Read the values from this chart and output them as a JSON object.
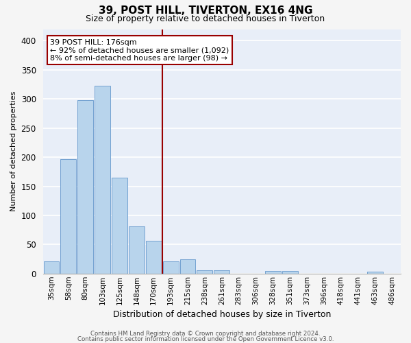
{
  "title": "39, POST HILL, TIVERTON, EX16 4NG",
  "subtitle": "Size of property relative to detached houses in Tiverton",
  "xlabel": "Distribution of detached houses by size in Tiverton",
  "ylabel": "Number of detached properties",
  "bar_labels": [
    "35sqm",
    "58sqm",
    "80sqm",
    "103sqm",
    "125sqm",
    "148sqm",
    "170sqm",
    "193sqm",
    "215sqm",
    "238sqm",
    "261sqm",
    "283sqm",
    "306sqm",
    "328sqm",
    "351sqm",
    "373sqm",
    "396sqm",
    "418sqm",
    "441sqm",
    "463sqm",
    "486sqm"
  ],
  "bar_values": [
    21,
    197,
    298,
    323,
    165,
    81,
    56,
    21,
    24,
    6,
    6,
    0,
    0,
    4,
    4,
    0,
    0,
    0,
    0,
    3,
    0
  ],
  "bar_color": "#b8d4ec",
  "bar_edge_color": "#6699cc",
  "vline_x": 6.5,
  "vline_color": "#990000",
  "annotation_title": "39 POST HILL: 176sqm",
  "annotation_line1": "← 92% of detached houses are smaller (1,092)",
  "annotation_line2": "8% of semi-detached houses are larger (98) →",
  "annotation_box_color": "#ffffff",
  "annotation_box_edge": "#990000",
  "ylim": [
    0,
    420
  ],
  "yticks": [
    0,
    50,
    100,
    150,
    200,
    250,
    300,
    350,
    400
  ],
  "background_color": "#e8eef8",
  "grid_color": "#ffffff",
  "footer1": "Contains HM Land Registry data © Crown copyright and database right 2024.",
  "footer2": "Contains public sector information licensed under the Open Government Licence v3.0."
}
